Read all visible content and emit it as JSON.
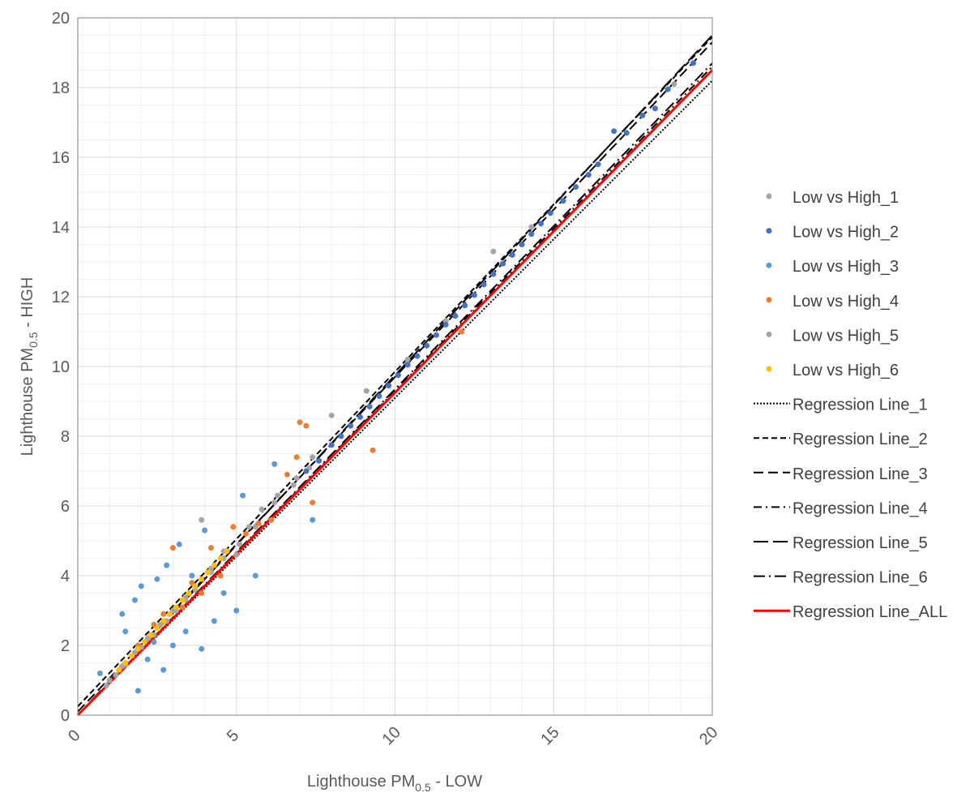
{
  "chart_data": {
    "type": "scatter",
    "title": "",
    "xlabel": {
      "main": "Lighthouse PM",
      "sub": "0.5",
      "suffix": " - LOW"
    },
    "ylabel": {
      "main": "Lighthouse PM",
      "sub": "0.5",
      "suffix": " - HIGH"
    },
    "xlim": [
      0,
      20
    ],
    "ylim": [
      0,
      20
    ],
    "x_ticks": [
      "0",
      "5",
      "10",
      "15",
      "20"
    ],
    "y_ticks": [
      "0",
      "2",
      "4",
      "6",
      "8",
      "10",
      "12",
      "14",
      "16",
      "18",
      "20"
    ],
    "grid": true,
    "minor_grid": true,
    "legend_position": "right",
    "series": [
      {
        "name": "Low vs High_1",
        "color": "#A5A5A5",
        "points": [
          [
            0.9,
            0.85
          ],
          [
            1.2,
            1.15
          ],
          [
            1.5,
            1.45
          ],
          [
            2.0,
            1.95
          ],
          [
            2.4,
            2.3
          ],
          [
            2.8,
            2.7
          ],
          [
            3.1,
            3.0
          ],
          [
            3.4,
            3.3
          ],
          [
            3.7,
            3.6
          ],
          [
            4.2,
            4.1
          ],
          [
            4.6,
            4.5
          ],
          [
            5.1,
            4.9
          ],
          [
            5.6,
            5.4
          ],
          [
            6.2,
            6.1
          ],
          [
            6.8,
            6.6
          ],
          [
            7.3,
            7.1
          ],
          [
            8.0,
            8.6
          ],
          [
            9.1,
            9.3
          ],
          [
            10.4,
            10.2
          ],
          [
            11.6,
            11.3
          ],
          [
            13.1,
            13.3
          ],
          [
            14.3,
            14.0
          ],
          [
            18.8,
            18.1
          ]
        ]
      },
      {
        "name": "Low vs High_2",
        "color": "#4472C4",
        "points": [
          [
            7.2,
            7.0
          ],
          [
            7.6,
            7.3
          ],
          [
            8.0,
            7.75
          ],
          [
            8.3,
            8.0
          ],
          [
            8.6,
            8.3
          ],
          [
            8.9,
            8.55
          ],
          [
            9.2,
            8.85
          ],
          [
            9.5,
            9.15
          ],
          [
            9.8,
            9.45
          ],
          [
            10.1,
            9.75
          ],
          [
            10.4,
            10.05
          ],
          [
            10.7,
            10.3
          ],
          [
            11.0,
            10.6
          ],
          [
            11.3,
            10.9
          ],
          [
            11.6,
            11.2
          ],
          [
            11.9,
            11.45
          ],
          [
            12.2,
            11.75
          ],
          [
            12.5,
            12.05
          ],
          [
            12.8,
            12.35
          ],
          [
            13.1,
            12.65
          ],
          [
            13.4,
            12.95
          ],
          [
            13.7,
            13.2
          ],
          [
            14.0,
            13.5
          ],
          [
            14.3,
            13.8
          ],
          [
            14.6,
            14.1
          ],
          [
            14.9,
            14.4
          ],
          [
            15.3,
            14.75
          ],
          [
            15.7,
            15.15
          ],
          [
            16.1,
            15.5
          ],
          [
            16.4,
            15.8
          ],
          [
            16.9,
            16.75
          ],
          [
            17.3,
            16.7
          ],
          [
            17.8,
            17.2
          ],
          [
            18.2,
            17.4
          ],
          [
            18.6,
            17.95
          ],
          [
            19.4,
            18.7
          ]
        ]
      },
      {
        "name": "Low vs High_3",
        "color": "#5B9BD5",
        "points": [
          [
            0.7,
            1.2
          ],
          [
            1.4,
            2.9
          ],
          [
            1.5,
            2.4
          ],
          [
            1.8,
            3.3
          ],
          [
            1.9,
            0.7
          ],
          [
            2.0,
            3.7
          ],
          [
            2.2,
            1.6
          ],
          [
            2.4,
            2.1
          ],
          [
            2.5,
            3.9
          ],
          [
            2.7,
            1.3
          ],
          [
            2.8,
            4.3
          ],
          [
            3.0,
            2.0
          ],
          [
            3.2,
            4.9
          ],
          [
            3.4,
            2.4
          ],
          [
            3.6,
            4.0
          ],
          [
            3.9,
            1.9
          ],
          [
            4.0,
            5.3
          ],
          [
            4.3,
            2.7
          ],
          [
            4.6,
            3.5
          ],
          [
            5.0,
            3.0
          ],
          [
            5.2,
            6.3
          ],
          [
            5.6,
            4.0
          ],
          [
            6.2,
            7.2
          ],
          [
            7.4,
            5.6
          ]
        ]
      },
      {
        "name": "Low vs High_4",
        "color": "#ED7D31",
        "points": [
          [
            1.9,
            2.0
          ],
          [
            2.4,
            2.6
          ],
          [
            2.7,
            2.9
          ],
          [
            3.0,
            4.8
          ],
          [
            3.3,
            3.1
          ],
          [
            3.6,
            3.8
          ],
          [
            3.9,
            3.5
          ],
          [
            4.2,
            4.8
          ],
          [
            4.5,
            4.0
          ],
          [
            4.9,
            5.4
          ],
          [
            5.3,
            5.2
          ],
          [
            5.7,
            5.5
          ],
          [
            6.1,
            5.6
          ],
          [
            6.6,
            6.9
          ],
          [
            6.9,
            7.4
          ],
          [
            7.0,
            8.4
          ],
          [
            7.2,
            8.3
          ],
          [
            7.4,
            6.1
          ],
          [
            9.3,
            7.6
          ],
          [
            12.1,
            11.0
          ]
        ]
      },
      {
        "name": "Low vs High_5",
        "color": "#A5A5A5",
        "points": [
          [
            1.0,
            1.0
          ],
          [
            1.4,
            1.4
          ],
          [
            1.8,
            1.8
          ],
          [
            2.2,
            2.2
          ],
          [
            2.6,
            2.6
          ],
          [
            3.0,
            3.0
          ],
          [
            3.4,
            3.4
          ],
          [
            3.9,
            5.6
          ],
          [
            4.2,
            4.2
          ],
          [
            4.6,
            4.7
          ],
          [
            5.0,
            4.6
          ],
          [
            5.4,
            5.4
          ],
          [
            5.8,
            5.9
          ],
          [
            6.3,
            6.3
          ],
          [
            6.9,
            6.8
          ],
          [
            7.4,
            7.4
          ]
        ]
      },
      {
        "name": "Low vs High_6",
        "color": "#FFC000",
        "points": [
          [
            1.3,
            1.3
          ],
          [
            1.5,
            1.5
          ],
          [
            1.7,
            1.7
          ],
          [
            1.9,
            1.9
          ],
          [
            2.1,
            2.1
          ],
          [
            2.3,
            2.3
          ],
          [
            2.5,
            2.5
          ],
          [
            2.7,
            2.7
          ],
          [
            2.9,
            2.9
          ],
          [
            3.1,
            3.1
          ],
          [
            3.3,
            3.3
          ],
          [
            3.5,
            3.5
          ],
          [
            3.7,
            3.7
          ],
          [
            3.9,
            3.9
          ],
          [
            4.1,
            4.1
          ],
          [
            4.3,
            4.3
          ],
          [
            4.5,
            4.5
          ],
          [
            4.7,
            4.7
          ]
        ]
      }
    ],
    "regression_lines": [
      {
        "name": "Regression Line_1",
        "color": "#000000",
        "dash": "dotted",
        "intercept": 0.0,
        "slope": 0.91
      },
      {
        "name": "Regression Line_2",
        "color": "#000000",
        "dash": "dash",
        "intercept": 0.25,
        "slope": 0.96
      },
      {
        "name": "Regression Line_3",
        "color": "#000000",
        "dash": "longdash",
        "intercept": 0.1,
        "slope": 0.96
      },
      {
        "name": "Regression Line_4",
        "color": "#000000",
        "dash": "dashdot",
        "intercept": 0.0,
        "slope": 0.93
      },
      {
        "name": "Regression Line_5",
        "color": "#000000",
        "dash": "verylong",
        "intercept": 0.0,
        "slope": 0.975
      },
      {
        "name": "Regression Line_6",
        "color": "#000000",
        "dash": "longdashdot",
        "intercept": 0.0,
        "slope": 0.935
      },
      {
        "name": "Regression Line_ALL",
        "color": "#FF0000",
        "dash": "solid",
        "intercept": 0.0,
        "slope": 0.925
      }
    ]
  }
}
